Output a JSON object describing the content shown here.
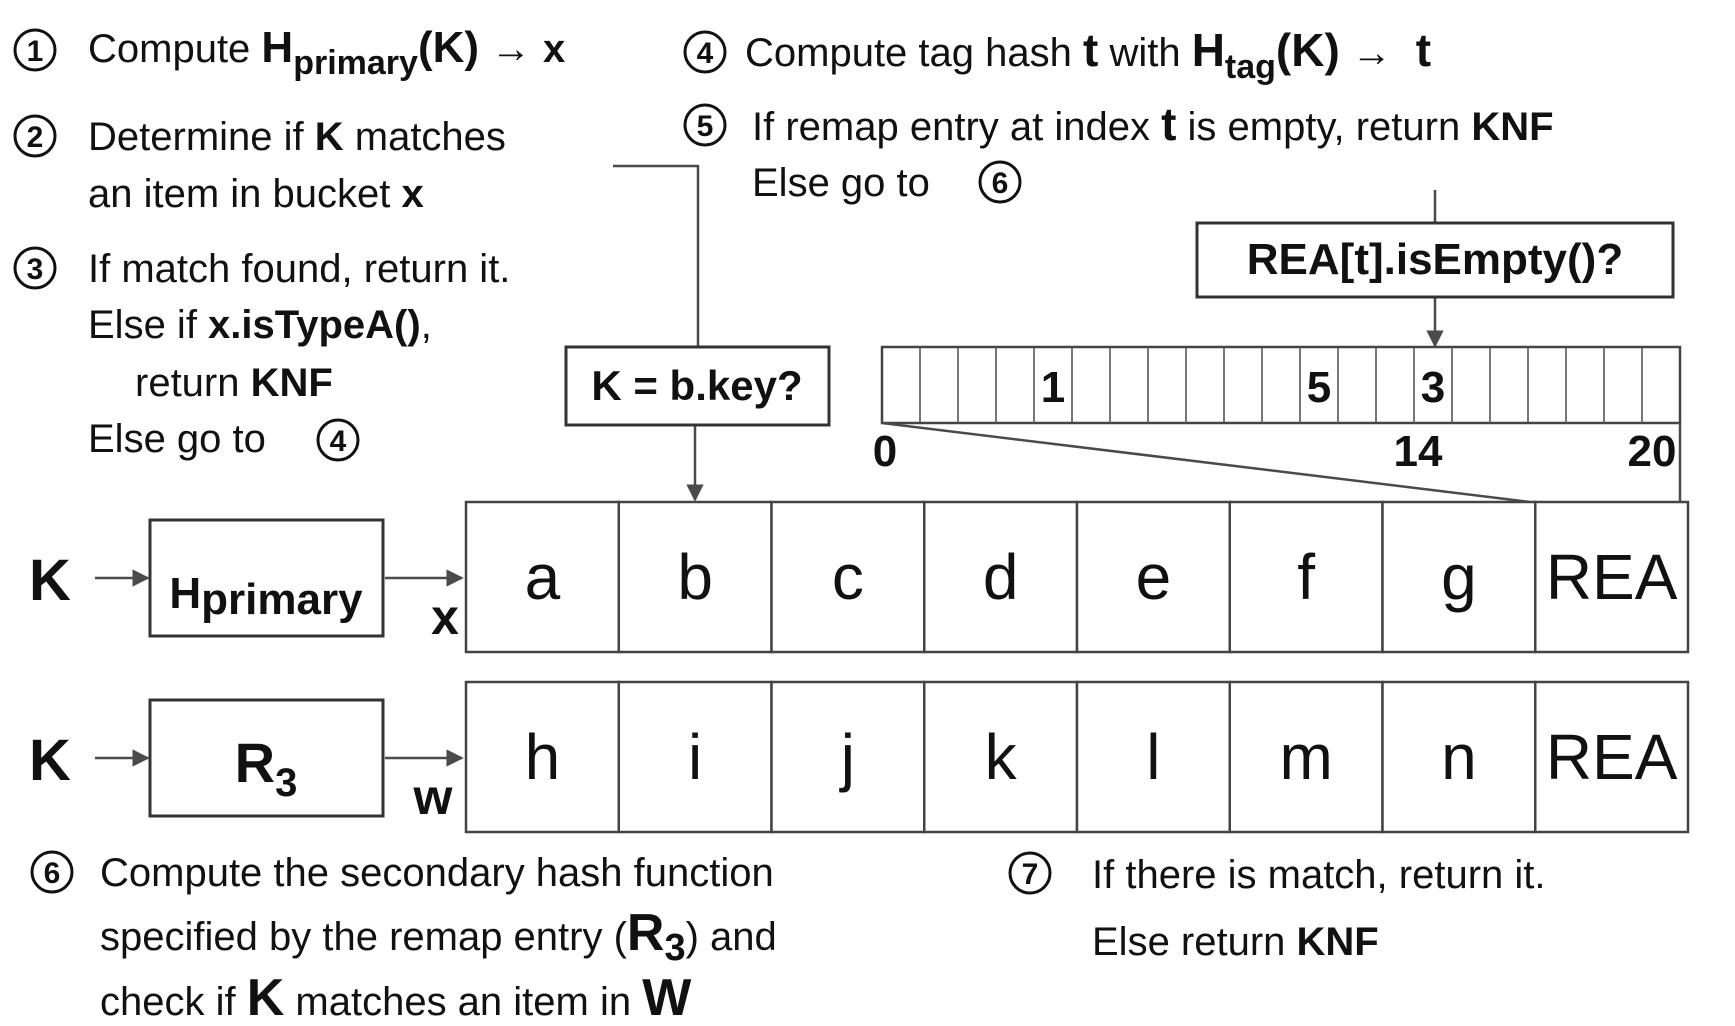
{
  "steps": {
    "s1": {
      "num": "1",
      "text": "Compute ",
      "func": "H",
      "func_sub": "primary",
      "args": "(K)",
      "arrow": "→",
      "result": "x"
    },
    "s2": {
      "num": "2",
      "l1a": "Determine if ",
      "l1b": "K",
      "l1c": " matches",
      "l2a": "an item in bucket ",
      "l2b": "x"
    },
    "s3": {
      "num": "3",
      "l1": "If match found, return it.",
      "l2a": "Else if ",
      "l2b": "x.isTypeA()",
      "l2c": ",",
      "l3a": "return ",
      "l3b": "KNF",
      "l4": "Else go to ",
      "goto": "4"
    },
    "s4": {
      "num": "4",
      "text": "Compute tag hash ",
      "tag": "t",
      "with": " with ",
      "func": "H",
      "func_sub": "tag",
      "args": "(K)",
      "arrow": "→",
      "result": "t"
    },
    "s5": {
      "num": "5",
      "l1a": "If remap entry at index ",
      "l1b": "t",
      "l1c": " is empty, return ",
      "l1d": "KNF",
      "l2": "Else go to ",
      "goto": "6"
    },
    "s6": {
      "num": "6",
      "l1": "Compute the secondary hash function",
      "l2a": "specified by the remap entry (",
      "l2b": "R",
      "l2sub": "3",
      "l2c": ") and",
      "l3a": "check if ",
      "l3b": "K",
      "l3c": " matches an item in ",
      "l3d": "W"
    },
    "s7": {
      "num": "7",
      "l1": "If there is match, return it.",
      "l2a": "Else return ",
      "l2b": "KNF"
    }
  },
  "labels": {
    "check_key": "K = b.key?",
    "rea_check": "REA[t].isEmpty()?",
    "input_k": "K",
    "hprimary_main": "H",
    "hprimary_sub": "primary",
    "r3_main": "R",
    "r3_sub": "3",
    "x_label": "x",
    "w_label": "w"
  },
  "rea_array": {
    "values": [
      {
        "index": 4,
        "text": "1"
      },
      {
        "index": 11,
        "text": "5"
      },
      {
        "index": 14,
        "text": "3"
      }
    ],
    "axis_labels": [
      "0",
      "14",
      "20"
    ]
  },
  "buckets": {
    "row1": [
      "a",
      "b",
      "c",
      "d",
      "e",
      "f",
      "g",
      "REA"
    ],
    "row2": [
      "h",
      "i",
      "j",
      "k",
      "l",
      "m",
      "n",
      "REA"
    ]
  }
}
